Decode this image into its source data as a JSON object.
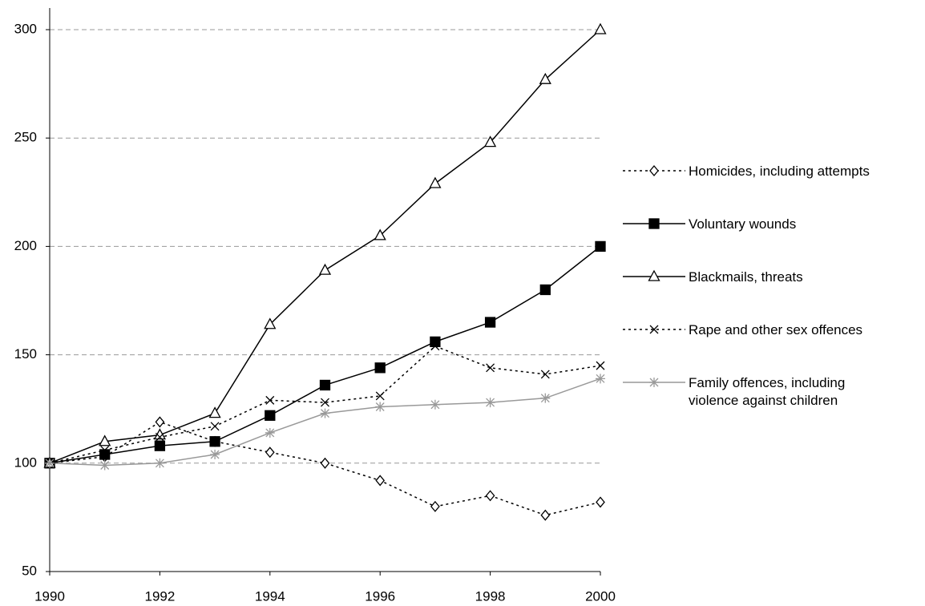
{
  "chart_data": {
    "type": "line",
    "x": [
      1990,
      1991,
      1992,
      1993,
      1994,
      1995,
      1996,
      1997,
      1998,
      1999,
      2000
    ],
    "xlim": [
      1990,
      2000
    ],
    "xticks": [
      1990,
      1992,
      1994,
      1996,
      1998,
      2000
    ],
    "ylim": [
      50,
      300
    ],
    "yticks": [
      50,
      100,
      150,
      200,
      250,
      300
    ],
    "grid": true,
    "legend": "right",
    "series": [
      {
        "name": "Homicides, including attempts",
        "color": "#000000",
        "dash": "dotted",
        "marker": "diamond-open",
        "values": [
          100,
          103,
          119,
          110,
          105,
          100,
          92,
          80,
          85,
          76,
          82
        ]
      },
      {
        "name": "Voluntary wounds",
        "color": "#000000",
        "dash": "solid",
        "marker": "square-filled",
        "values": [
          100,
          104,
          108,
          110,
          122,
          136,
          144,
          156,
          165,
          180,
          200
        ]
      },
      {
        "name": "Blackmails, threats",
        "color": "#000000",
        "dash": "solid",
        "marker": "triangle-open",
        "values": [
          100,
          110,
          113,
          123,
          164,
          189,
          205,
          229,
          248,
          277,
          300
        ]
      },
      {
        "name": "Rape and other sex offences",
        "color": "#000000",
        "dash": "dotted",
        "marker": "x",
        "values": [
          100,
          106,
          112,
          117,
          129,
          128,
          131,
          154,
          144,
          141,
          145
        ]
      },
      {
        "name": "Family offences, including\nviolence against children",
        "color": "#999999",
        "dash": "solid",
        "marker": "asterisk",
        "values": [
          100,
          99,
          100,
          104,
          114,
          123,
          126,
          127,
          128,
          130,
          139
        ]
      }
    ]
  }
}
